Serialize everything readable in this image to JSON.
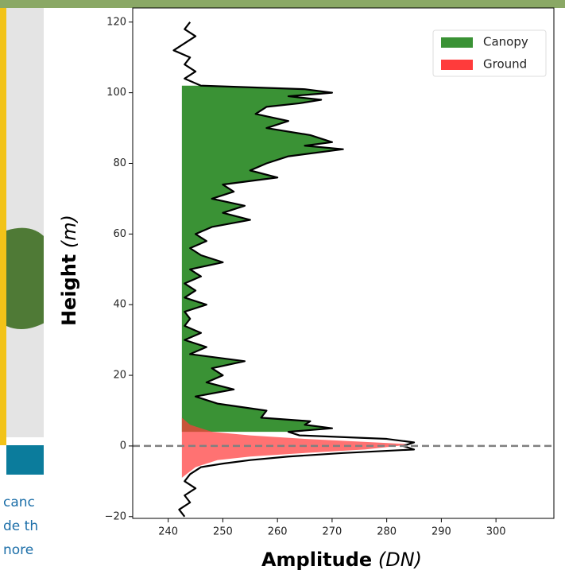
{
  "background_text": [
    "canc",
    "de th",
    "nore"
  ],
  "chart_data": {
    "type": "line",
    "x_label": "Amplitude",
    "x_label_unit": "(DN)",
    "y_label": "Height",
    "y_label_unit": "(m)",
    "xlim": [
      233.5,
      310.6
    ],
    "ylim": [
      -20.5,
      124
    ],
    "xticks": [
      240,
      250,
      260,
      270,
      280,
      290,
      300
    ],
    "yticks": [
      {
        "value": -20,
        "label": "−20"
      },
      0,
      20,
      40,
      60,
      80,
      100,
      120
    ],
    "baseline": 242.5,
    "reference_line": 0,
    "legend": "upper right",
    "waveform": {
      "color": "#000000",
      "x": [
        244,
        243,
        245,
        243,
        241,
        244,
        243,
        245,
        243,
        246,
        265,
        270,
        262,
        268,
        264,
        258,
        256,
        262,
        258,
        266,
        270,
        265,
        272,
        262,
        258,
        255,
        260,
        250,
        252,
        248,
        254,
        250,
        255,
        248,
        245,
        247,
        244,
        246,
        250,
        244,
        246,
        243,
        245,
        243,
        247,
        243,
        244,
        243,
        246,
        243,
        247,
        244,
        254,
        248,
        250,
        247,
        252,
        245,
        249,
        258,
        257,
        266,
        265,
        270,
        262,
        264,
        280,
        285,
        283,
        285,
        272,
        262,
        255,
        250,
        246,
        244,
        243,
        245,
        243,
        244,
        242,
        243
      ],
      "values": [
        120,
        118,
        116,
        114,
        112,
        110,
        108,
        106,
        104,
        102,
        101,
        100,
        99,
        98,
        97,
        96,
        94,
        92,
        90,
        88,
        86,
        85,
        84,
        82,
        80,
        78,
        76,
        74,
        72,
        70,
        68,
        66,
        64,
        62,
        60,
        58,
        56,
        54,
        52,
        50,
        48,
        46,
        44,
        42,
        40,
        38,
        36,
        34,
        32,
        30,
        28,
        26,
        24,
        22,
        20,
        18,
        16,
        14,
        12,
        10,
        8,
        7,
        6,
        5,
        4,
        3,
        2,
        1,
        0,
        -1,
        -2,
        -3,
        -4,
        -5,
        -6,
        -8,
        -10,
        -12,
        -14,
        -16,
        -18,
        -20
      ]
    },
    "series": [
      {
        "name": "Canopy",
        "color": "#3a9235",
        "x": [
          246,
          265,
          270,
          262,
          268,
          264,
          258,
          256,
          262,
          258,
          266,
          270,
          265,
          272,
          262,
          258,
          255,
          260,
          250,
          252,
          248,
          254,
          250,
          255,
          248,
          245,
          247,
          244,
          246,
          250,
          244,
          246,
          243,
          245,
          243,
          247,
          243,
          244,
          243,
          246,
          243,
          247,
          244,
          254,
          248,
          250,
          247,
          252,
          245,
          249,
          258,
          257,
          266,
          265,
          270,
          262
        ],
        "values": [
          102,
          101,
          100,
          99,
          98,
          97,
          96,
          94,
          92,
          90,
          88,
          86,
          85,
          84,
          82,
          80,
          78,
          76,
          74,
          72,
          70,
          68,
          66,
          64,
          62,
          60,
          58,
          56,
          54,
          52,
          50,
          48,
          46,
          44,
          42,
          40,
          38,
          36,
          34,
          32,
          30,
          28,
          26,
          24,
          22,
          20,
          18,
          16,
          14,
          12,
          10,
          8,
          7,
          6,
          5,
          4
        ]
      },
      {
        "name": "Ground",
        "color": "#ff3b3b",
        "x": [
          242.5,
          244,
          248,
          255,
          265,
          278,
          284,
          282,
          276,
          265,
          255,
          249,
          245,
          242.5
        ],
        "values": [
          8,
          6,
          4,
          3,
          2,
          1,
          0.5,
          0,
          -1,
          -2,
          -3,
          -4,
          -6,
          -9
        ]
      }
    ]
  }
}
